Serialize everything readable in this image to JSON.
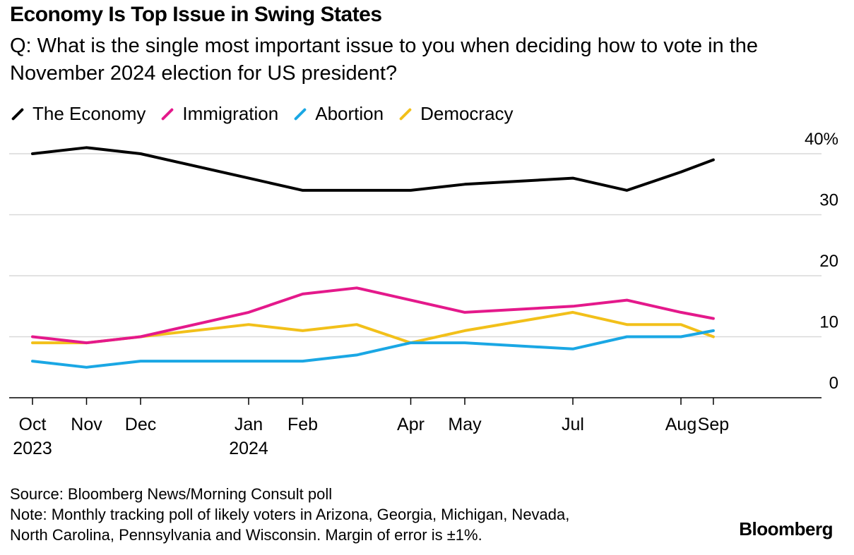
{
  "title": "Economy Is Top Issue in Swing States",
  "subtitle": "Q: What is the single most important issue to you when deciding how to vote in the November 2024 election for US president?",
  "footer": {
    "source": "Source: Bloomberg News/Morning Consult poll",
    "note_line1": "Note: Monthly tracking poll of likely voters in Arizona, Georgia, Michigan, Nevada,",
    "note_line2": "North Carolina, Pennsylvania and Wisconsin. Margin of error is ±1%."
  },
  "brand": "Bloomberg",
  "chart_data": {
    "type": "line",
    "x": [
      0,
      1,
      2,
      4,
      5,
      6,
      7,
      8,
      10,
      11,
      12,
      12.6
    ],
    "series": [
      {
        "name": "The Economy",
        "color": "#000000",
        "values": [
          40,
          41,
          40,
          36,
          34,
          34,
          34,
          35,
          36,
          34,
          37,
          39
        ]
      },
      {
        "name": "Immigration",
        "color": "#e4198b",
        "values": [
          10,
          9,
          10,
          14,
          17,
          18,
          16,
          14,
          15,
          16,
          14,
          13
        ]
      },
      {
        "name": "Abortion",
        "color": "#1aa7e4",
        "values": [
          6,
          5,
          6,
          6,
          6,
          7,
          9,
          9,
          8,
          10,
          10,
          11
        ]
      },
      {
        "name": "Democracy",
        "color": "#f2c01a",
        "values": [
          9,
          9,
          10,
          12,
          11,
          12,
          9,
          11,
          14,
          12,
          12,
          10
        ]
      }
    ],
    "xticks": [
      {
        "x": 0,
        "label": "Oct",
        "sublabel": "2023"
      },
      {
        "x": 1,
        "label": "Nov",
        "sublabel": ""
      },
      {
        "x": 2,
        "label": "Dec",
        "sublabel": ""
      },
      {
        "x": 4,
        "label": "Jan",
        "sublabel": "2024"
      },
      {
        "x": 5,
        "label": "Feb",
        "sublabel": ""
      },
      {
        "x": 7,
        "label": "Apr",
        "sublabel": ""
      },
      {
        "x": 8,
        "label": "May",
        "sublabel": ""
      },
      {
        "x": 10,
        "label": "Jul",
        "sublabel": ""
      },
      {
        "x": 12,
        "label": "Aug",
        "sublabel": ""
      },
      {
        "x": 12.6,
        "label": "Sep",
        "sublabel": ""
      }
    ],
    "yticks": [
      {
        "value": 0,
        "label": "0"
      },
      {
        "value": 10,
        "label": "10"
      },
      {
        "value": 20,
        "label": "20"
      },
      {
        "value": 30,
        "label": "30"
      },
      {
        "value": 40,
        "label": "40%"
      }
    ],
    "ylim": [
      0,
      40
    ],
    "grid": true,
    "legend_position": "top-left"
  }
}
